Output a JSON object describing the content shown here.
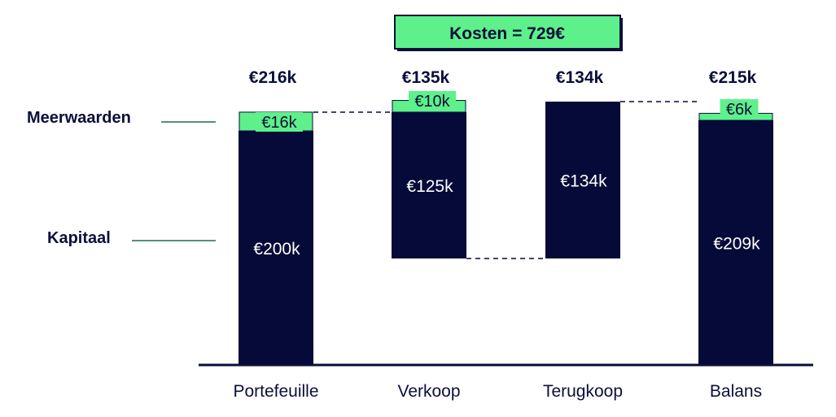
{
  "colors": {
    "navy": "#050a38",
    "green": "#5ef08a",
    "line": "#1f6b55",
    "text": "#0b0f3a"
  },
  "legend": {
    "gains_label": "Meerwaarden",
    "capital_label": "Kapitaal"
  },
  "chart_data": {
    "type": "bar",
    "subtype": "waterfall",
    "annotation": "Kosten = 729€",
    "categories": [
      "Portefeuille",
      "Verkoop",
      "Terugkoop",
      "Balans"
    ],
    "totals": [
      "€216k",
      "€135k",
      "€134k",
      "€215k"
    ],
    "series": [
      {
        "name": "Kapitaal",
        "values": [
          200,
          125,
          134,
          209
        ],
        "labels": [
          "€200k",
          "€125k",
          "€134k",
          "€209k"
        ]
      },
      {
        "name": "Meerwaarden",
        "values": [
          16,
          10,
          0,
          6
        ],
        "labels": [
          "€16k",
          "€10k",
          "",
          "€6k"
        ]
      }
    ],
    "bar_base": [
      0,
      91,
      91,
      0
    ],
    "unit": "k€",
    "grid": false
  }
}
